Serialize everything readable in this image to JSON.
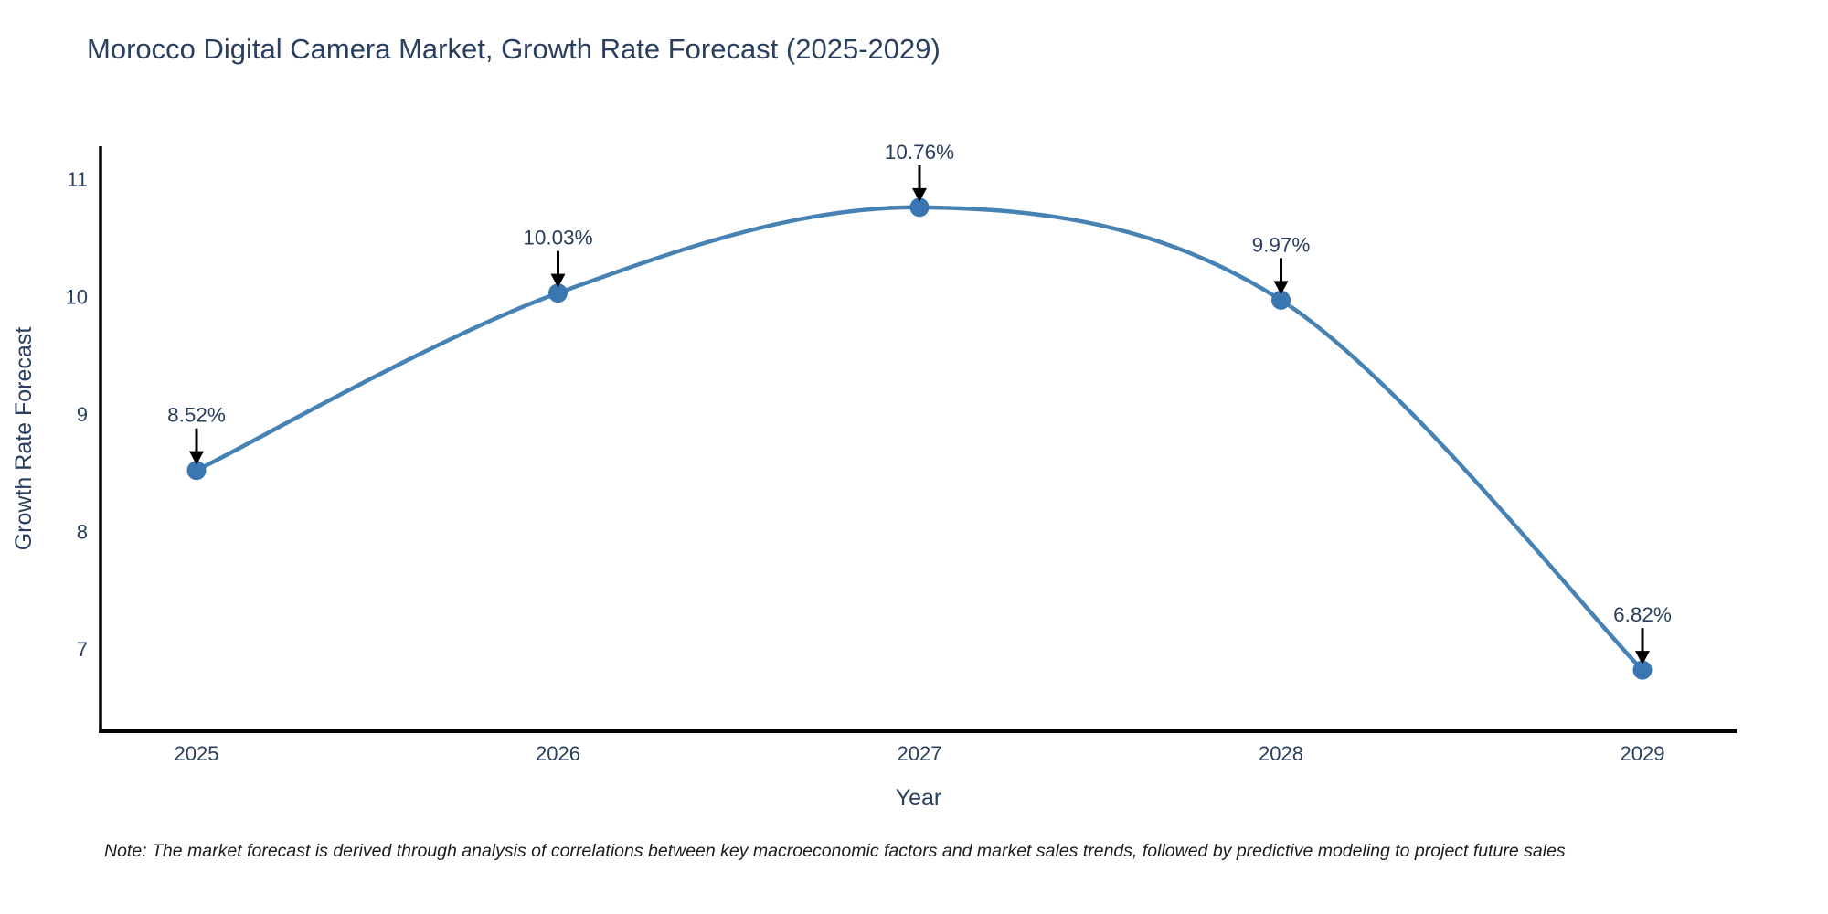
{
  "title": "Morocco Digital Camera Market, Growth Rate Forecast (2025-2029)",
  "footnote": "Note: The market forecast is derived through analysis of correlations between key macroeconomic factors and market sales trends, followed by predictive modeling to project future sales",
  "chart_data": {
    "type": "line",
    "title": "Morocco Digital Camera Market, Growth Rate Forecast (2025-2029)",
    "xlabel": "Year",
    "ylabel": "Growth Rate Forecast",
    "categories": [
      "2025",
      "2026",
      "2027",
      "2028",
      "2029"
    ],
    "values": [
      8.52,
      10.03,
      10.76,
      9.97,
      6.82
    ],
    "point_labels": [
      "8.52%",
      "10.03%",
      "10.76%",
      "9.97%",
      "6.82%"
    ],
    "yticks": [
      7,
      8,
      9,
      10,
      11
    ],
    "ylim": [
      6.3,
      11.28
    ],
    "line_shape": "spline",
    "grid": false,
    "legend": "none",
    "annotation_style": "down-arrow",
    "colors": {
      "line": "#4682b4",
      "marker": "#3a76b2",
      "arrow": "#000000",
      "axis": "#000000",
      "text": "#2a3f5f"
    }
  }
}
